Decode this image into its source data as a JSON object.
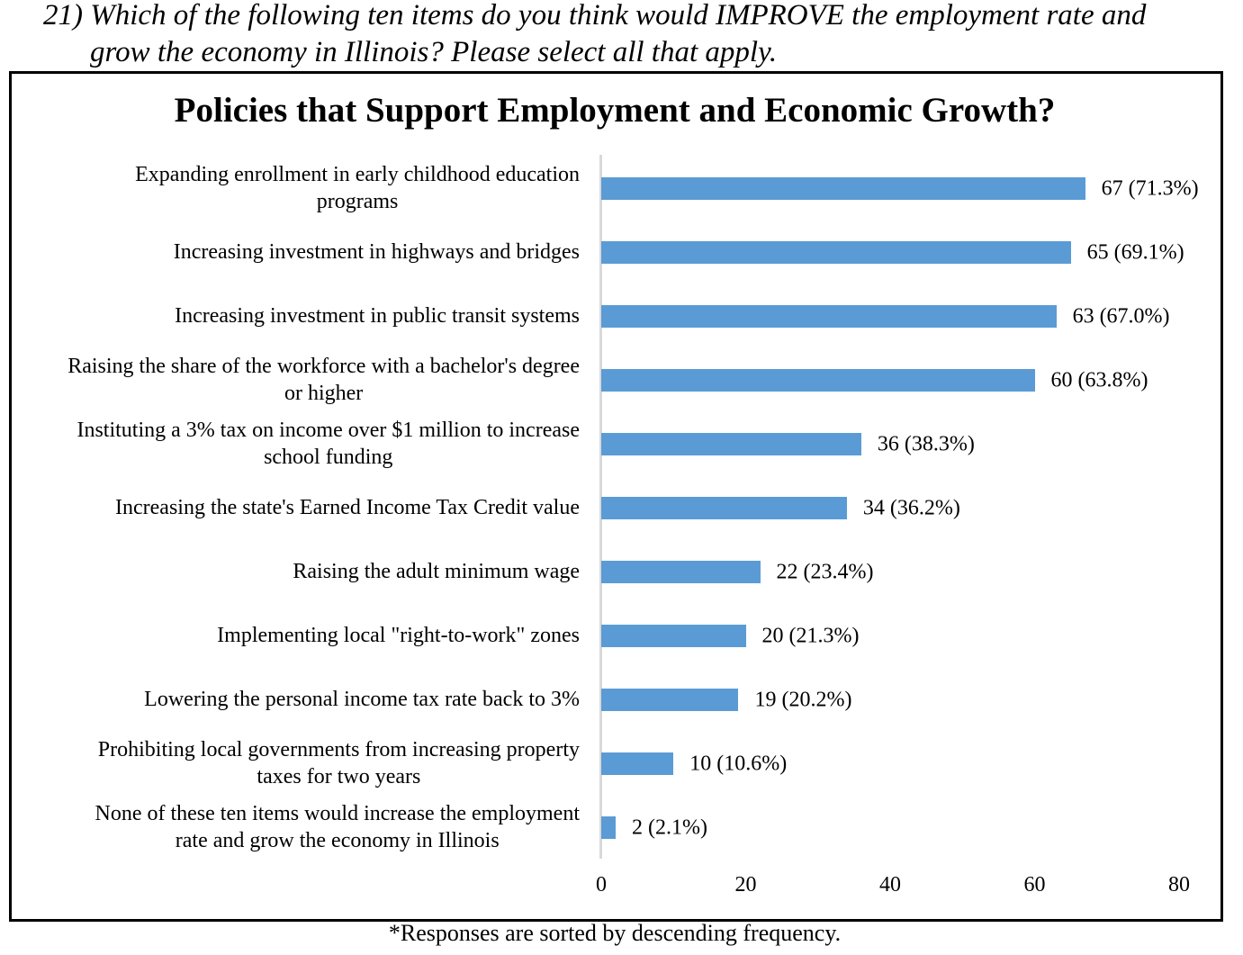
{
  "question": {
    "line1": "21) Which of the following ten items do you think would IMPROVE the employment rate and",
    "line2": "grow the economy in Illinois? Please select all that apply."
  },
  "chart_data": {
    "type": "bar",
    "orientation": "horizontal",
    "title": "Policies that Support Employment and Economic Growth?",
    "categories": [
      [
        "Expanding enrollment in early childhood education",
        "programs"
      ],
      [
        "Increasing investment in highways and bridges"
      ],
      [
        "Increasing investment in public transit systems"
      ],
      [
        "Raising the share of the workforce with a bachelor's degree",
        "or higher"
      ],
      [
        "Instituting a 3% tax on income over $1 million to increase",
        "school funding"
      ],
      [
        "Increasing the state's Earned Income Tax Credit value"
      ],
      [
        "Raising the adult minimum wage"
      ],
      [
        "Implementing local \"right-to-work\" zones"
      ],
      [
        "Lowering the personal income tax rate back to 3%"
      ],
      [
        "Prohibiting local governments from increasing property",
        "taxes for two years"
      ],
      [
        "None of these ten items would increase the employment",
        "rate and grow the economy in Illinois"
      ]
    ],
    "values": [
      67,
      65,
      63,
      60,
      36,
      34,
      22,
      20,
      19,
      10,
      2
    ],
    "data_labels": [
      "67 (71.3%)",
      "65 (69.1%)",
      "63 (67.0%)",
      "60 (63.8%)",
      "36 (38.3%)",
      "34 (36.2%)",
      "22 (23.4%)",
      "20 (21.3%)",
      "19 (20.2%)",
      "10 (10.6%)",
      "2 (2.1%)"
    ],
    "xlim": [
      0,
      80
    ],
    "xticks": [
      "0",
      "20",
      "40",
      "60",
      "80"
    ],
    "grid": false,
    "bar_color": "#5b9bd5"
  },
  "footnote": "*Responses are sorted by descending frequency."
}
